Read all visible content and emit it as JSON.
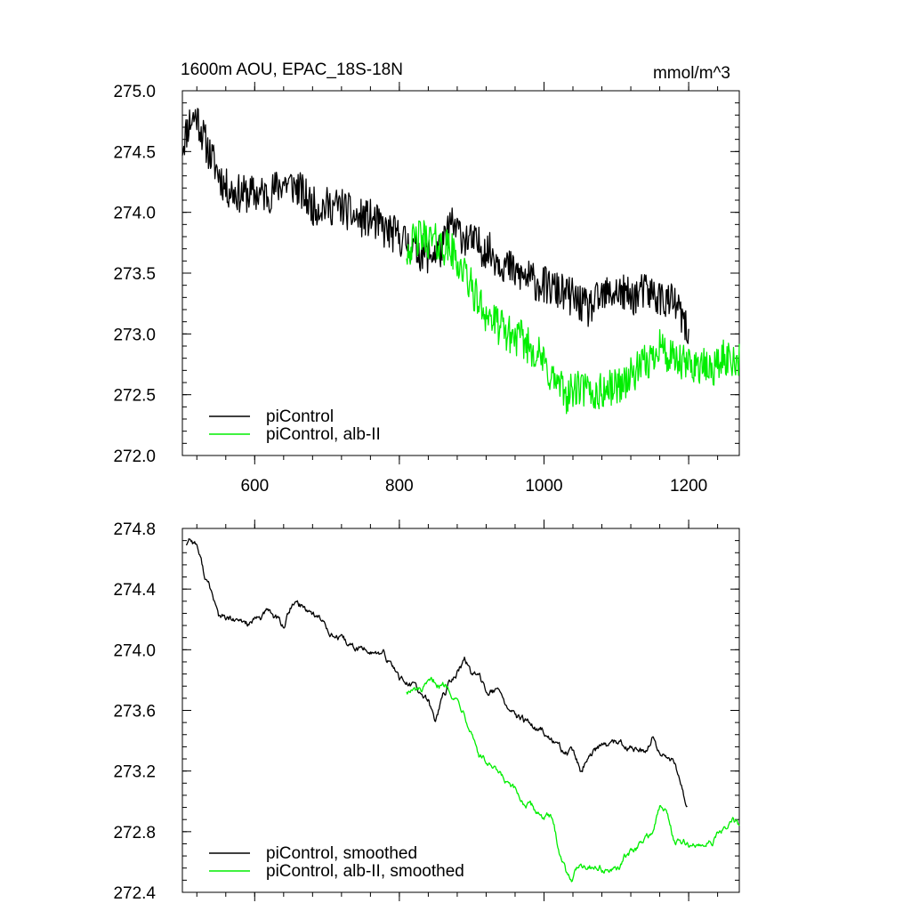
{
  "chart_data": [
    {
      "type": "line",
      "title": "1600m AOU, EPAC_18S-18N",
      "units": "mmol/m^3",
      "xlim": [
        500,
        1270
      ],
      "ylim": [
        272.0,
        275.0
      ],
      "x_ticks": [
        600,
        800,
        1000,
        1200
      ],
      "x_tick_labels": [
        "600",
        "800",
        "1000",
        "1200"
      ],
      "y_ticks": [
        272.0,
        272.5,
        273.0,
        273.5,
        274.0,
        274.5,
        275.0
      ],
      "y_tick_labels": [
        "272.0",
        "272.5",
        "273.0",
        "273.5",
        "274.0",
        "274.5",
        "275.0"
      ],
      "legend_position": "bottom-left",
      "series": [
        {
          "name": "piControl",
          "color": "#000000",
          "x": [
            500,
            510,
            520,
            530,
            540,
            560,
            580,
            600,
            620,
            640,
            660,
            680,
            700,
            720,
            740,
            760,
            780,
            800,
            820,
            840,
            860,
            870,
            880,
            900,
            920,
            940,
            960,
            980,
            1000,
            1020,
            1040,
            1060,
            1080,
            1100,
            1120,
            1140,
            1160,
            1180,
            1190,
            1200
          ],
          "y": [
            274.55,
            274.75,
            274.8,
            274.6,
            274.45,
            274.2,
            274.15,
            274.15,
            274.15,
            274.25,
            274.2,
            274.05,
            274.05,
            274.05,
            273.95,
            273.95,
            273.85,
            273.8,
            273.7,
            273.65,
            273.7,
            273.9,
            273.85,
            273.75,
            273.7,
            273.6,
            273.5,
            273.45,
            273.4,
            273.35,
            273.3,
            273.2,
            273.3,
            273.35,
            273.3,
            273.35,
            273.3,
            273.25,
            273.15,
            272.95
          ]
        },
        {
          "name": "piControl, alb-II",
          "color": "#00ee00",
          "x": [
            810,
            830,
            850,
            870,
            890,
            910,
            930,
            950,
            970,
            990,
            1010,
            1030,
            1050,
            1070,
            1090,
            1110,
            1130,
            1150,
            1160,
            1170,
            1190,
            1210,
            1230,
            1250,
            1270
          ],
          "y": [
            273.7,
            273.8,
            273.75,
            273.7,
            273.5,
            273.25,
            273.1,
            273.0,
            272.95,
            272.85,
            272.65,
            272.5,
            272.55,
            272.5,
            272.55,
            272.6,
            272.7,
            272.8,
            272.95,
            272.8,
            272.75,
            272.75,
            272.7,
            272.8,
            272.8
          ]
        }
      ]
    },
    {
      "type": "line",
      "xlim": [
        500,
        1270
      ],
      "ylim": [
        272.4,
        274.8
      ],
      "x_ticks": [
        600,
        800,
        1000,
        1200
      ],
      "y_ticks": [
        272.4,
        272.8,
        273.2,
        273.6,
        274.0,
        274.4,
        274.8
      ],
      "y_tick_labels": [
        "272.4",
        "272.8",
        "273.2",
        "273.6",
        "274.0",
        "274.4",
        "274.8"
      ],
      "legend_position": "bottom-left",
      "series": [
        {
          "name": "piControl, smoothed",
          "color": "#000000",
          "x": [
            505,
            510,
            520,
            530,
            540,
            550,
            560,
            580,
            600,
            620,
            640,
            650,
            660,
            680,
            700,
            720,
            740,
            760,
            780,
            800,
            820,
            840,
            850,
            860,
            880,
            890,
            900,
            920,
            940,
            960,
            980,
            1000,
            1020,
            1040,
            1050,
            1060,
            1080,
            1100,
            1120,
            1140,
            1150,
            1160,
            1180,
            1190,
            1198
          ],
          "y": [
            274.7,
            274.74,
            274.7,
            274.5,
            274.38,
            274.22,
            274.2,
            274.17,
            274.18,
            274.25,
            274.15,
            274.28,
            274.3,
            274.25,
            274.15,
            274.05,
            274.0,
            274.0,
            273.95,
            273.82,
            273.75,
            273.65,
            273.52,
            273.7,
            273.85,
            273.93,
            273.85,
            273.75,
            273.7,
            273.55,
            273.5,
            273.45,
            273.35,
            273.3,
            273.2,
            273.3,
            273.35,
            273.38,
            273.35,
            273.3,
            273.42,
            273.3,
            273.25,
            273.1,
            272.97
          ]
        },
        {
          "name": "piControl, alb-II, smoothed",
          "color": "#00ee00",
          "x": [
            810,
            830,
            850,
            870,
            890,
            900,
            910,
            930,
            950,
            970,
            990,
            1010,
            1020,
            1030,
            1040,
            1050,
            1070,
            1090,
            1100,
            1110,
            1130,
            1150,
            1160,
            1170,
            1180,
            1190,
            1210,
            1230,
            1250,
            1260,
            1270
          ],
          "y": [
            273.73,
            273.72,
            273.78,
            273.75,
            273.6,
            273.48,
            273.32,
            273.2,
            273.1,
            273.0,
            272.93,
            272.88,
            272.7,
            272.55,
            272.5,
            272.6,
            272.58,
            272.55,
            272.52,
            272.62,
            272.7,
            272.8,
            272.96,
            272.92,
            272.75,
            272.72,
            272.7,
            272.75,
            272.8,
            272.88,
            272.82
          ]
        }
      ]
    }
  ]
}
